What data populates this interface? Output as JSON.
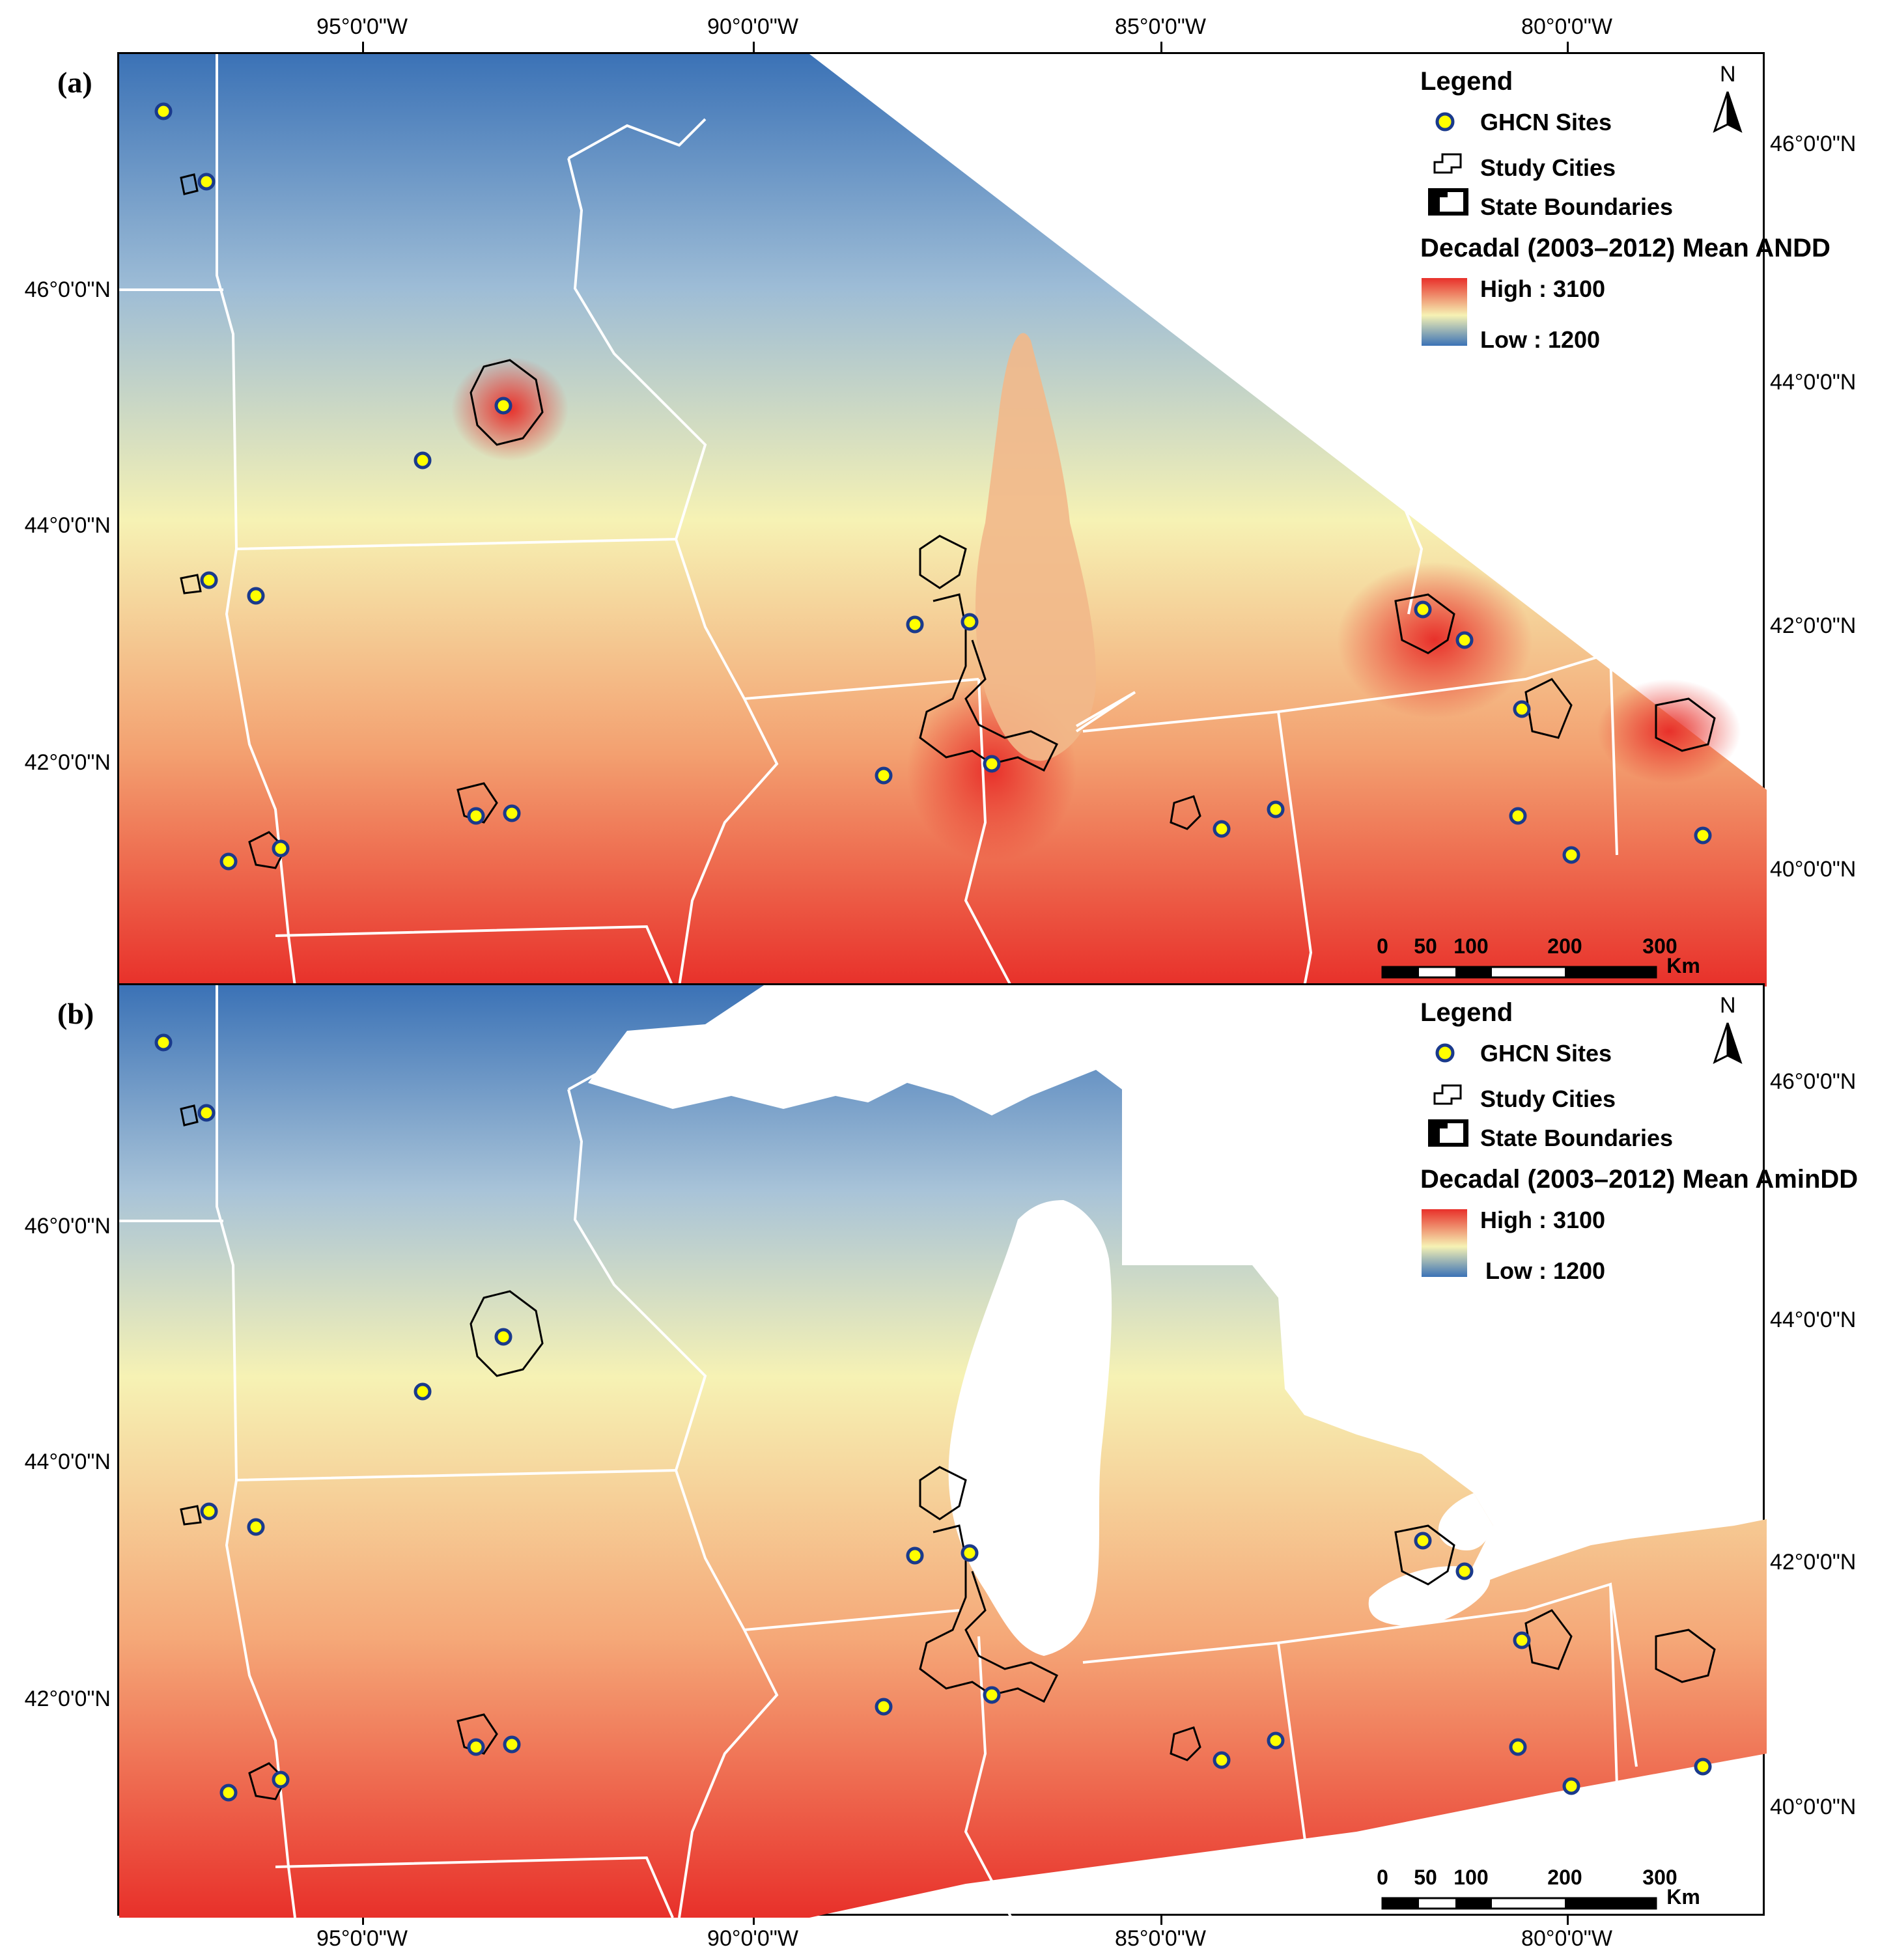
{
  "panels": [
    {
      "id": "a",
      "label": "(a)",
      "legend": {
        "title": "Legend",
        "sites_label": "GHCN Sites",
        "cities_label": "Study Cities",
        "states_label": "State Boundaries",
        "ramp_title": "Decadal (2003–2012) Mean ANDD",
        "high_label": "High : 3100",
        "low_label": "Low : 1200"
      },
      "top_ticks": [
        "95°0'0\"W",
        "90°0'0\"W",
        "85°0'0\"W",
        "80°0'0\"W"
      ],
      "left_ticks": [
        "46°0'0\"N",
        "44°0'0\"N",
        "42°0'0\"N"
      ],
      "right_ticks": [
        "46°0'0\"N",
        "44°0'0\"N",
        "42°0'0\"N",
        "40°0'0\"N"
      ],
      "north": "N",
      "scale": {
        "labels": [
          "0",
          "50",
          "100",
          "200",
          "300"
        ],
        "unit": "Km"
      }
    },
    {
      "id": "b",
      "label": "(b)",
      "legend": {
        "title": "Legend",
        "sites_label": "GHCN Sites",
        "cities_label": "Study Cities",
        "states_label": "State Boundaries",
        "ramp_title": "Decadal (2003–2012) Mean AminDD",
        "high_label": "High : 3100",
        "low_label": "Low : 1200"
      },
      "bottom_ticks": [
        "95°0'0\"W",
        "90°0'0\"W",
        "85°0'0\"W",
        "80°0'0\"W"
      ],
      "left_ticks": [
        "46°0'0\"N",
        "44°0'0\"N",
        "42°0'0\"N"
      ],
      "right_ticks": [
        "46°0'0\"N",
        "44°0'0\"N",
        "42°0'0\"N",
        "40°0'0\"N"
      ],
      "north": "N",
      "scale": {
        "labels": [
          "0",
          "50",
          "100",
          "200",
          "300"
        ],
        "unit": "Km"
      }
    }
  ],
  "colors": {
    "high": "#e8302a",
    "mid": "#f6f2b4",
    "low": "#3b72b6",
    "site_fill": "#ffff00",
    "site_stroke": "#1a3a8c",
    "state_line": "#ffffff",
    "city_outline": "#000000"
  }
}
